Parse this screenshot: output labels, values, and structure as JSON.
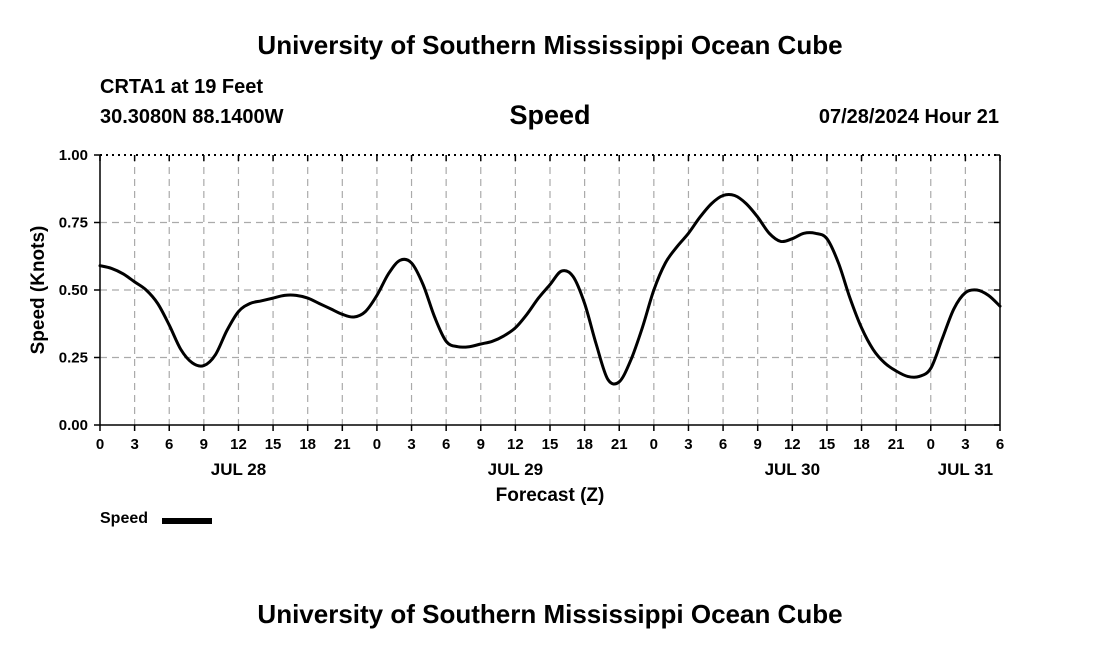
{
  "header": {
    "title": "University of Southern Mississippi Ocean Cube",
    "station": "CRTA1 at 19 Feet",
    "coordinates": "30.3080N  88.1400W",
    "variable": "Speed",
    "timestamp": "07/28/2024 Hour 21"
  },
  "footer": {
    "title": "University of Southern Mississippi Ocean Cube"
  },
  "legend": {
    "label": "Speed"
  },
  "chart_data": {
    "type": "line",
    "title": "Speed",
    "xlabel": "Forecast (Z)",
    "ylabel": "Speed (Knots)",
    "ylim": [
      0,
      1
    ],
    "yticks": [
      0.0,
      0.25,
      0.5,
      0.75,
      1.0
    ],
    "ytick_labels": [
      "0.00",
      "0.25",
      "0.50",
      "0.75",
      "1.00"
    ],
    "x_unit": "hours",
    "xlim": [
      0,
      78
    ],
    "xticks": [
      0,
      3,
      6,
      9,
      12,
      15,
      18,
      21,
      24,
      27,
      30,
      33,
      36,
      39,
      42,
      45,
      48,
      51,
      54,
      57,
      60,
      63,
      66,
      69,
      72,
      75,
      78
    ],
    "xtick_labels": [
      "0",
      "3",
      "6",
      "9",
      "12",
      "15",
      "18",
      "21",
      "0",
      "3",
      "6",
      "9",
      "12",
      "15",
      "18",
      "21",
      "0",
      "3",
      "6",
      "9",
      "12",
      "15",
      "18",
      "21",
      "0",
      "3",
      "6"
    ],
    "date_labels": [
      {
        "label": "JUL 28",
        "x": 12
      },
      {
        "label": "JUL 29",
        "x": 36
      },
      {
        "label": "JUL 30",
        "x": 60
      },
      {
        "label": "JUL 31",
        "x": 75
      }
    ],
    "grid": true,
    "legend_position": "bottom-left",
    "series": [
      {
        "name": "Speed",
        "color": "#000000",
        "x": [
          0,
          1,
          2,
          3,
          4,
          5,
          6,
          7,
          8,
          9,
          10,
          11,
          12,
          13,
          14,
          15,
          16,
          17,
          18,
          19,
          20,
          21,
          22,
          23,
          24,
          25,
          26,
          27,
          28,
          29,
          30,
          31,
          32,
          33,
          34,
          35,
          36,
          37,
          38,
          39,
          40,
          41,
          42,
          43,
          44,
          45,
          46,
          47,
          48,
          49,
          50,
          51,
          52,
          53,
          54,
          55,
          56,
          57,
          58,
          59,
          60,
          61,
          62,
          63,
          64,
          65,
          66,
          67,
          68,
          69,
          70,
          71,
          72,
          73,
          74,
          75,
          76,
          77,
          78
        ],
        "values": [
          0.59,
          0.58,
          0.56,
          0.53,
          0.5,
          0.45,
          0.37,
          0.28,
          0.23,
          0.22,
          0.26,
          0.35,
          0.42,
          0.45,
          0.46,
          0.47,
          0.48,
          0.48,
          0.47,
          0.45,
          0.43,
          0.41,
          0.4,
          0.42,
          0.48,
          0.56,
          0.61,
          0.6,
          0.52,
          0.4,
          0.31,
          0.29,
          0.29,
          0.3,
          0.31,
          0.33,
          0.36,
          0.41,
          0.47,
          0.52,
          0.57,
          0.55,
          0.45,
          0.3,
          0.17,
          0.16,
          0.24,
          0.36,
          0.5,
          0.6,
          0.66,
          0.71,
          0.77,
          0.82,
          0.85,
          0.85,
          0.82,
          0.77,
          0.71,
          0.68,
          0.69,
          0.71,
          0.71,
          0.69,
          0.6,
          0.47,
          0.36,
          0.28,
          0.23,
          0.2,
          0.18,
          0.18,
          0.21,
          0.32,
          0.43,
          0.49,
          0.5,
          0.48,
          0.44
        ]
      }
    ]
  }
}
